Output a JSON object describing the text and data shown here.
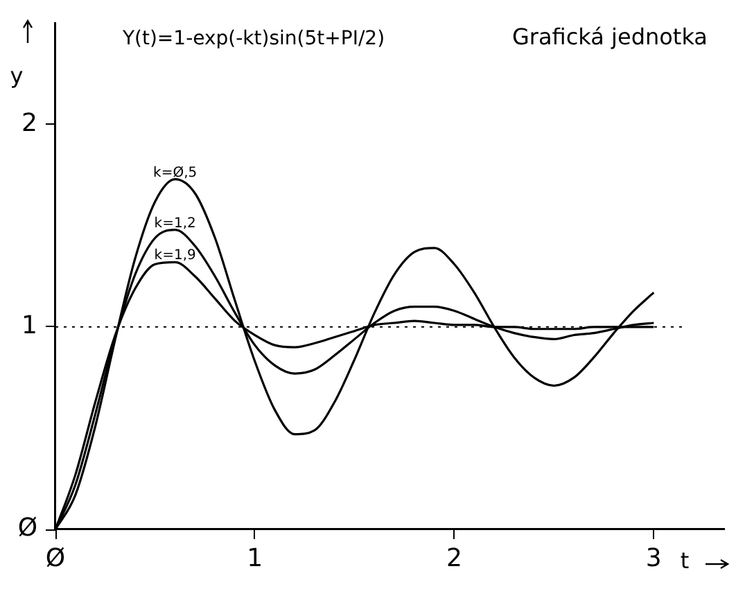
{
  "chart_data": {
    "type": "line",
    "title": "Y(t)=1-exp(-kt)sin(5t+PI/2)",
    "xlabel": "t",
    "ylabel": "y",
    "x": [
      0,
      0.1,
      0.2,
      0.3,
      0.4,
      0.5,
      0.6,
      0.7,
      0.8,
      0.9,
      1.0,
      1.1,
      1.2,
      1.3,
      1.4,
      1.5,
      1.6,
      1.7,
      1.8,
      1.9,
      2.0,
      2.1,
      2.2,
      2.3,
      2.4,
      2.5,
      2.6,
      2.7,
      2.8,
      2.9,
      3.0
    ],
    "series": [
      {
        "name": "k=Ø,5",
        "color": "#000000",
        "values": [
          0,
          0.17,
          0.51,
          0.94,
          1.34,
          1.62,
          1.73,
          1.66,
          1.44,
          1.13,
          0.83,
          0.59,
          0.47,
          0.49,
          0.63,
          0.84,
          1.07,
          1.26,
          1.37,
          1.39,
          1.31,
          1.17,
          1.0,
          0.85,
          0.75,
          0.71,
          0.75,
          0.85,
          0.97,
          1.08,
          1.17
        ]
      },
      {
        "name": "k=1,2",
        "color": "#000000",
        "values": [
          0,
          0.22,
          0.57,
          0.95,
          1.26,
          1.44,
          1.48,
          1.4,
          1.25,
          1.07,
          0.91,
          0.81,
          0.77,
          0.79,
          0.86,
          0.94,
          1.02,
          1.08,
          1.1,
          1.1,
          1.08,
          1.04,
          1.0,
          0.97,
          0.95,
          0.94,
          0.96,
          0.97,
          0.99,
          1.01,
          1.02
        ]
      },
      {
        "name": "k=1,9",
        "color": "#000000",
        "values": [
          0,
          0.27,
          0.63,
          0.96,
          1.19,
          1.31,
          1.32,
          1.25,
          1.14,
          1.03,
          0.96,
          0.91,
          0.9,
          0.92,
          0.95,
          0.98,
          1.01,
          1.02,
          1.03,
          1.02,
          1.01,
          1.01,
          1.0,
          1.0,
          0.99,
          0.99,
          0.99,
          1.0,
          1.0,
          1.0,
          1.0
        ]
      }
    ],
    "xlim": [
      0,
      3.35
    ],
    "xticks": [
      {
        "value": 0,
        "label": "Ø"
      },
      1,
      2,
      3
    ],
    "ylim": [
      0,
      2.5
    ],
    "yticks": [
      {
        "value": 0,
        "label": "Ø"
      },
      1,
      2
    ],
    "ref_lines": [
      {
        "axis": "y",
        "value": 1,
        "line_style": "dotted",
        "color": "#000000"
      }
    ],
    "annotations": [
      "Grafická jednotka"
    ],
    "grid": false,
    "legend": false,
    "marker": "none",
    "line_style": "solid"
  }
}
